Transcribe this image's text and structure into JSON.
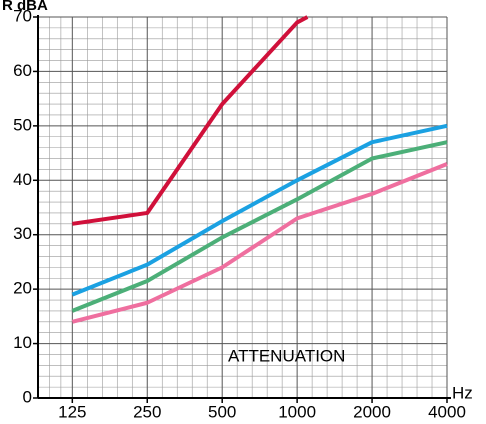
{
  "chart_data": {
    "type": "line",
    "y_label": "R dBA",
    "x_label": "Hz",
    "annotation": "ATTENUATION",
    "x": [
      125,
      250,
      500,
      1000,
      2000,
      4000
    ],
    "xscale": "log",
    "xlim": [
      91,
      4000
    ],
    "xticks": [
      125,
      250,
      500,
      1000,
      2000,
      4000
    ],
    "ylim": [
      0,
      70
    ],
    "yticks": [
      0,
      10,
      20,
      30,
      40,
      50,
      60,
      70
    ],
    "grid": true,
    "series": [
      {
        "color": "#d0103a",
        "x": [
          125,
          250,
          500,
          1000,
          1100
        ],
        "values": [
          32,
          34,
          54,
          69,
          70
        ]
      },
      {
        "color": "#1ba1e2",
        "values": [
          19,
          24.5,
          32.5,
          40,
          47,
          50
        ]
      },
      {
        "color": "#4caf78",
        "values": [
          16,
          21.5,
          29.5,
          36.5,
          44,
          47
        ]
      },
      {
        "color": "#ef6f9f",
        "values": [
          14,
          17.5,
          24,
          33,
          37.5,
          43
        ]
      }
    ]
  }
}
